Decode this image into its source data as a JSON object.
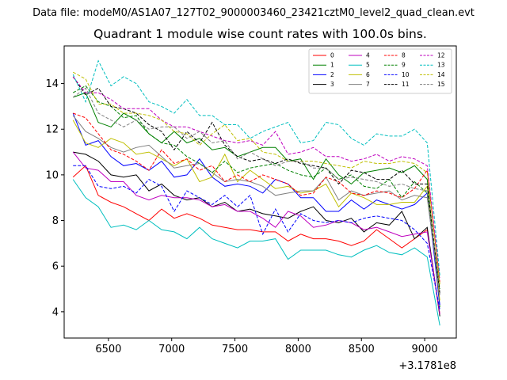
{
  "figure": {
    "suptitle": "Data file: modeM0/AS1A07_127T02_9000003460_23421cztM0_level2_quad_clean.evt"
  },
  "chart_data": {
    "type": "line",
    "title": "Quadrant 1 module wise count rates with 100.0s bins.",
    "xlabel": "",
    "ylabel": "",
    "x_offset_label": "+3.1781e8",
    "xlim": [
      6150,
      9250
    ],
    "ylim": [
      2.85,
      15.65
    ],
    "xticks": [
      6500,
      7000,
      7500,
      8000,
      8500,
      9000
    ],
    "yticks": [
      4,
      6,
      8,
      10,
      12,
      14
    ],
    "x": [
      6220,
      6320,
      6420,
      6520,
      6620,
      6720,
      6820,
      6920,
      7020,
      7120,
      7220,
      7320,
      7420,
      7520,
      7620,
      7720,
      7820,
      7920,
      8020,
      8120,
      8220,
      8320,
      8420,
      8520,
      8620,
      8720,
      8820,
      8920,
      9020,
      9120
    ],
    "legend_position": "top-right",
    "series": [
      {
        "name": "0",
        "color": "#ff0000",
        "dash": "solid",
        "values": [
          9.9,
          10.4,
          9.1,
          8.8,
          8.6,
          8.3,
          8.0,
          8.5,
          8.1,
          8.3,
          8.1,
          7.8,
          7.7,
          7.6,
          7.6,
          7.5,
          7.5,
          7.1,
          7.4,
          7.2,
          7.2,
          7.1,
          6.9,
          7.1,
          7.6,
          7.2,
          6.8,
          7.2,
          7.6,
          3.9
        ]
      },
      {
        "name": "1",
        "color": "#008000",
        "dash": "solid",
        "values": [
          13.4,
          13.6,
          12.3,
          12.1,
          12.7,
          12.4,
          11.8,
          11.4,
          11.9,
          11.4,
          11.6,
          11.1,
          11.2,
          10.8,
          11.0,
          11.2,
          11.2,
          10.6,
          10.7,
          9.8,
          10.7,
          10.0,
          9.6,
          10.1,
          10.2,
          10.3,
          10.1,
          10.4,
          9.8,
          4.2
        ]
      },
      {
        "name": "2",
        "color": "#0000ff",
        "dash": "solid",
        "values": [
          12.7,
          11.3,
          11.5,
          10.8,
          10.4,
          10.5,
          10.2,
          10.6,
          9.9,
          10.0,
          10.7,
          9.9,
          9.5,
          9.6,
          9.5,
          9.2,
          9.8,
          9.6,
          9.0,
          9.0,
          8.4,
          8.4,
          8.9,
          8.5,
          8.9,
          8.7,
          8.5,
          8.7,
          9.2,
          4.3
        ]
      },
      {
        "name": "3",
        "color": "#000000",
        "dash": "solid",
        "values": [
          11.0,
          10.9,
          10.6,
          10.0,
          9.9,
          10.0,
          9.3,
          9.6,
          9.1,
          8.9,
          9.0,
          8.6,
          8.8,
          8.4,
          8.5,
          8.3,
          8.2,
          8.1,
          8.4,
          8.6,
          8.0,
          7.9,
          8.1,
          7.5,
          7.9,
          7.8,
          8.4,
          7.2,
          7.7,
          3.8
        ]
      },
      {
        "name": "4",
        "color": "#bf00bf",
        "dash": "solid",
        "values": [
          11.0,
          10.3,
          10.2,
          9.7,
          9.7,
          9.1,
          8.9,
          9.1,
          9.0,
          9.0,
          8.9,
          8.6,
          8.7,
          8.4,
          8.4,
          8.1,
          7.7,
          8.4,
          8.2,
          7.7,
          7.8,
          8.0,
          7.9,
          7.6,
          7.7,
          7.5,
          7.3,
          7.4,
          7.5,
          3.9
        ]
      },
      {
        "name": "5",
        "color": "#00bfbf",
        "dash": "solid",
        "values": [
          9.8,
          9.0,
          8.6,
          7.7,
          7.8,
          7.6,
          8.0,
          7.6,
          7.5,
          7.2,
          7.7,
          7.2,
          7.0,
          6.8,
          7.1,
          7.1,
          7.2,
          6.3,
          6.7,
          6.7,
          6.7,
          6.5,
          6.4,
          6.7,
          6.9,
          6.6,
          6.5,
          6.8,
          6.4,
          3.4
        ]
      },
      {
        "name": "6",
        "color": "#bfbf00",
        "dash": "solid",
        "values": [
          12.4,
          11.4,
          11.2,
          11.6,
          11.4,
          10.9,
          11.0,
          10.7,
          10.4,
          10.7,
          9.7,
          9.9,
          10.9,
          9.7,
          10.2,
          9.8,
          9.4,
          9.5,
          9.2,
          9.3,
          9.6,
          8.6,
          9.2,
          9.0,
          8.7,
          8.7,
          8.8,
          8.8,
          9.5,
          4.5
        ]
      },
      {
        "name": "7",
        "color": "#808080",
        "dash": "solid",
        "values": [
          12.6,
          11.9,
          11.6,
          11.2,
          11.0,
          11.2,
          11.3,
          10.8,
          10.3,
          10.4,
          10.5,
          10.1,
          9.7,
          9.8,
          9.7,
          9.5,
          9.1,
          9.2,
          9.3,
          9.3,
          9.9,
          8.9,
          9.3,
          9.1,
          9.2,
          9.3,
          8.9,
          9.1,
          9.0,
          4.8
        ]
      },
      {
        "name": "8",
        "color": "#ff0000",
        "dash": "dashed",
        "values": [
          12.7,
          12.5,
          11.8,
          11.1,
          10.9,
          10.6,
          10.2,
          11.1,
          10.5,
          10.7,
          10.2,
          10.4,
          9.7,
          10.0,
          9.7,
          10.0,
          9.8,
          9.6,
          9.1,
          9.2,
          9.9,
          9.7,
          9.2,
          9.1,
          9.3,
          9.2,
          9.0,
          9.4,
          10.2,
          5.3
        ]
      },
      {
        "name": "9",
        "color": "#008000",
        "dash": "dashed",
        "values": [
          13.6,
          13.9,
          13.2,
          13.0,
          12.5,
          12.6,
          11.8,
          11.4,
          11.3,
          10.8,
          10.5,
          10.1,
          10.6,
          10.1,
          10.3,
          10.4,
          10.5,
          10.2,
          10.0,
          9.9,
          10.3,
          9.8,
          10.0,
          9.5,
          9.4,
          9.8,
          9.0,
          9.7,
          9.2,
          5.0
        ]
      },
      {
        "name": "10",
        "color": "#0000ff",
        "dash": "dashed",
        "values": [
          10.4,
          10.4,
          9.5,
          9.4,
          9.5,
          9.2,
          9.8,
          9.5,
          8.4,
          9.3,
          9.0,
          8.7,
          9.1,
          8.6,
          9.1,
          7.4,
          8.5,
          7.5,
          8.3,
          8.0,
          7.9,
          8.0,
          7.9,
          8.1,
          8.2,
          8.1,
          8.0,
          7.6,
          7.0,
          4.1
        ]
      },
      {
        "name": "11",
        "color": "#000000",
        "dash": "dashed",
        "values": [
          14.3,
          13.5,
          13.8,
          13.0,
          12.9,
          12.7,
          12.2,
          11.9,
          11.1,
          11.9,
          11.4,
          12.3,
          11.3,
          10.8,
          10.6,
          10.7,
          10.5,
          10.7,
          10.5,
          10.4,
          10.3,
          9.6,
          10.2,
          10.1,
          9.8,
          9.8,
          10.2,
          9.6,
          9.6,
          4.8
        ]
      },
      {
        "name": "12",
        "color": "#bf00bf",
        "dash": "dashed",
        "values": [
          14.3,
          13.6,
          13.6,
          13.3,
          12.9,
          12.9,
          12.9,
          12.4,
          12.1,
          12.1,
          11.9,
          11.7,
          11.5,
          11.4,
          11.5,
          11.3,
          11.9,
          10.9,
          11.0,
          11.2,
          10.8,
          10.8,
          10.6,
          10.7,
          10.9,
          10.6,
          10.8,
          10.7,
          10.4,
          5.5
        ]
      },
      {
        "name": "13",
        "color": "#00bfbf",
        "dash": "dashed",
        "values": [
          14.4,
          13.2,
          15.0,
          13.9,
          14.3,
          14.0,
          13.2,
          13.0,
          12.7,
          13.3,
          12.6,
          12.6,
          12.2,
          12.2,
          11.6,
          11.9,
          12.1,
          12.3,
          11.4,
          11.5,
          12.3,
          12.2,
          11.6,
          11.3,
          11.8,
          11.7,
          11.7,
          12.0,
          11.4,
          5.6
        ]
      },
      {
        "name": "14",
        "color": "#bfbf00",
        "dash": "dashed",
        "values": [
          14.5,
          14.2,
          13.1,
          13.1,
          12.7,
          12.7,
          12.6,
          12.4,
          11.9,
          11.8,
          11.3,
          11.8,
          12.2,
          11.5,
          11.6,
          11.0,
          10.9,
          10.6,
          10.6,
          10.6,
          10.5,
          10.4,
          10.3,
          10.6,
          10.5,
          10.5,
          10.6,
          10.5,
          10.1,
          5.2
        ]
      },
      {
        "name": "15",
        "color": "#808080",
        "dash": "dashed",
        "values": [
          13.4,
          13.8,
          12.7,
          12.4,
          12.1,
          12.4,
          12.0,
          12.1,
          12.1,
          11.6,
          11.9,
          11.4,
          11.5,
          10.7,
          11.0,
          10.7,
          10.4,
          10.6,
          10.6,
          10.3,
          10.3,
          9.8,
          9.9,
          9.8,
          9.7,
          9.5,
          9.6,
          9.4,
          9.3,
          4.7
        ]
      }
    ]
  }
}
